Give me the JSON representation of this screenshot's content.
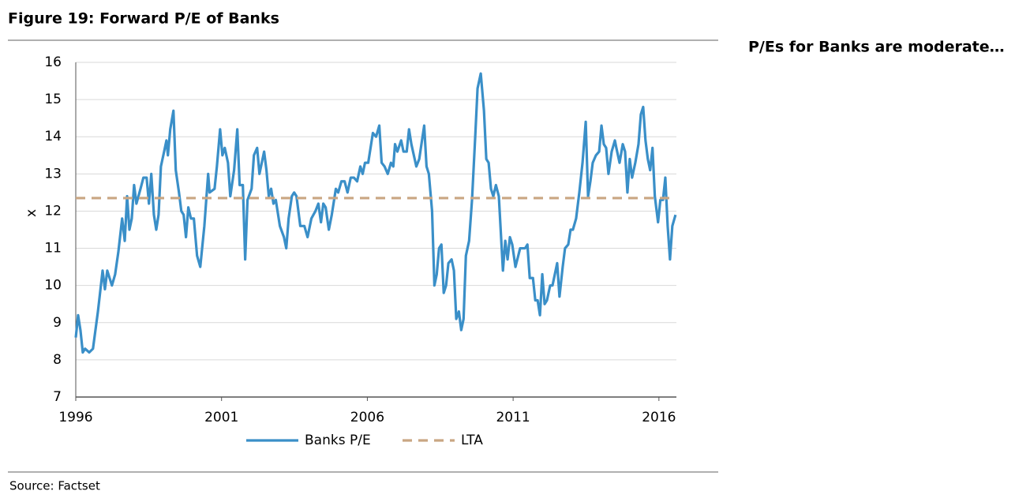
{
  "header": {
    "title": "Figure 19: Forward P/E of Banks",
    "side_note": "P/Es for Banks are moderate…"
  },
  "chart_data": {
    "type": "line",
    "y_label": "x",
    "xlim": [
      1996,
      2016.6
    ],
    "xticks": [
      1996,
      2001,
      2006,
      2011,
      2016
    ],
    "ylim": [
      7,
      16
    ],
    "yticks": [
      7,
      8,
      9,
      10,
      11,
      12,
      13,
      14,
      15,
      16
    ],
    "grid": true,
    "series": [
      {
        "name": "Banks P/E",
        "color": "#3a8fc8",
        "line_style": "solid",
        "x": [
          1996.0,
          1996.08,
          1996.16,
          1996.24,
          1996.32,
          1996.46,
          1996.59,
          1996.76,
          1996.92,
          1997.0,
          1997.08,
          1997.24,
          1997.35,
          1997.46,
          1997.59,
          1997.68,
          1997.76,
          1997.84,
          1997.92,
          1998.0,
          1998.08,
          1998.22,
          1998.32,
          1998.43,
          1998.51,
          1998.59,
          1998.68,
          1998.76,
          1998.84,
          1998.92,
          1999.03,
          1999.11,
          1999.16,
          1999.24,
          1999.35,
          1999.43,
          1999.54,
          1999.62,
          1999.7,
          1999.78,
          1999.86,
          1999.95,
          2000.05,
          2000.16,
          2000.27,
          2000.41,
          2000.54,
          2000.59,
          2000.76,
          2000.84,
          2000.95,
          2001.03,
          2001.11,
          2001.22,
          2001.3,
          2001.43,
          2001.54,
          2001.62,
          2001.73,
          2001.81,
          2001.89,
          2002.03,
          2002.11,
          2002.22,
          2002.3,
          2002.46,
          2002.54,
          2002.62,
          2002.7,
          2002.78,
          2002.86,
          2003.0,
          2003.14,
          2003.22,
          2003.3,
          2003.41,
          2003.49,
          2003.57,
          2003.7,
          2003.84,
          2003.95,
          2004.08,
          2004.22,
          2004.32,
          2004.41,
          2004.49,
          2004.57,
          2004.68,
          2004.78,
          2004.92,
          2005.0,
          2005.11,
          2005.22,
          2005.32,
          2005.43,
          2005.54,
          2005.65,
          2005.76,
          2005.84,
          2005.92,
          2006.03,
          2006.19,
          2006.3,
          2006.41,
          2006.49,
          2006.59,
          2006.7,
          2006.81,
          2006.89,
          2006.95,
          2007.03,
          2007.16,
          2007.24,
          2007.35,
          2007.43,
          2007.51,
          2007.68,
          2007.78,
          2007.95,
          2008.03,
          2008.11,
          2008.22,
          2008.3,
          2008.38,
          2008.46,
          2008.54,
          2008.62,
          2008.7,
          2008.78,
          2008.89,
          2008.97,
          2009.05,
          2009.14,
          2009.22,
          2009.3,
          2009.38,
          2009.49,
          2009.59,
          2009.7,
          2009.78,
          2009.89,
          2010.0,
          2010.08,
          2010.16,
          2010.24,
          2010.32,
          2010.41,
          2010.51,
          2010.65,
          2010.73,
          2010.81,
          2010.89,
          2010.97,
          2011.08,
          2011.24,
          2011.41,
          2011.49,
          2011.57,
          2011.68,
          2011.76,
          2011.84,
          2011.92,
          2012.0,
          2012.08,
          2012.16,
          2012.27,
          2012.35,
          2012.51,
          2012.59,
          2012.7,
          2012.78,
          2012.89,
          2012.97,
          2013.05,
          2013.16,
          2013.27,
          2013.38,
          2013.49,
          2013.57,
          2013.65,
          2013.73,
          2013.84,
          2013.95,
          2014.03,
          2014.11,
          2014.19,
          2014.27,
          2014.38,
          2014.49,
          2014.54,
          2014.65,
          2014.76,
          2014.84,
          2014.92,
          2015.0,
          2015.08,
          2015.19,
          2015.3,
          2015.38,
          2015.46,
          2015.54,
          2015.62,
          2015.7,
          2015.78,
          2015.86,
          2015.97,
          2016.05,
          2016.14,
          2016.22,
          2016.3,
          2016.38,
          2016.46,
          2016.57
        ],
        "values": [
          8.6,
          9.2,
          8.8,
          8.2,
          8.3,
          8.2,
          8.3,
          9.3,
          10.4,
          9.9,
          10.4,
          10.0,
          10.3,
          10.9,
          11.8,
          11.2,
          12.4,
          11.5,
          11.8,
          12.7,
          12.2,
          12.6,
          12.9,
          12.9,
          12.2,
          13.0,
          11.9,
          11.5,
          11.9,
          13.2,
          13.6,
          13.9,
          13.5,
          14.2,
          14.7,
          13.1,
          12.5,
          12.0,
          11.9,
          11.3,
          12.1,
          11.8,
          11.8,
          10.8,
          10.5,
          11.6,
          13.0,
          12.5,
          12.6,
          13.2,
          14.2,
          13.5,
          13.7,
          13.3,
          12.4,
          13.1,
          14.2,
          12.7,
          12.7,
          10.7,
          12.3,
          12.6,
          13.5,
          13.7,
          13.0,
          13.6,
          13.1,
          12.4,
          12.6,
          12.2,
          12.3,
          11.6,
          11.3,
          11.0,
          11.8,
          12.4,
          12.5,
          12.4,
          11.6,
          11.6,
          11.3,
          11.8,
          12.0,
          12.2,
          11.7,
          12.2,
          12.1,
          11.5,
          11.9,
          12.6,
          12.5,
          12.8,
          12.8,
          12.5,
          12.9,
          12.9,
          12.8,
          13.2,
          13.0,
          13.3,
          13.3,
          14.1,
          14.0,
          14.3,
          13.3,
          13.2,
          13.0,
          13.3,
          13.2,
          13.8,
          13.6,
          13.9,
          13.6,
          13.6,
          14.2,
          13.8,
          13.2,
          13.4,
          14.3,
          13.2,
          13.0,
          12.0,
          10.0,
          10.3,
          11.0,
          11.1,
          9.8,
          10.0,
          10.6,
          10.7,
          10.4,
          9.1,
          9.3,
          8.8,
          9.1,
          10.8,
          11.2,
          12.3,
          14.0,
          15.3,
          15.7,
          14.7,
          13.4,
          13.3,
          12.6,
          12.4,
          12.7,
          12.4,
          10.4,
          11.2,
          10.7,
          11.3,
          11.1,
          10.5,
          11.0,
          11.0,
          11.1,
          10.2,
          10.2,
          9.6,
          9.6,
          9.2,
          10.3,
          9.5,
          9.6,
          10.0,
          10.0,
          10.6,
          9.7,
          10.5,
          11.0,
          11.1,
          11.5,
          11.5,
          11.8,
          12.5,
          13.3,
          14.4,
          12.4,
          12.8,
          13.3,
          13.5,
          13.6,
          14.3,
          13.8,
          13.7,
          13.0,
          13.6,
          13.9,
          13.7,
          13.3,
          13.8,
          13.6,
          12.5,
          13.4,
          12.9,
          13.3,
          13.8,
          14.6,
          14.8,
          13.9,
          13.4,
          13.1,
          13.7,
          12.4,
          11.7,
          12.3,
          12.3,
          12.9,
          11.6,
          10.7,
          11.6,
          11.9
        ]
      },
      {
        "name": "LTA",
        "color": "#c9a683",
        "line_style": "dashed",
        "x": [
          1996.0,
          2016.57
        ],
        "values": [
          12.35,
          12.35
        ]
      }
    ]
  },
  "footer": {
    "source": "Source: Factset"
  }
}
